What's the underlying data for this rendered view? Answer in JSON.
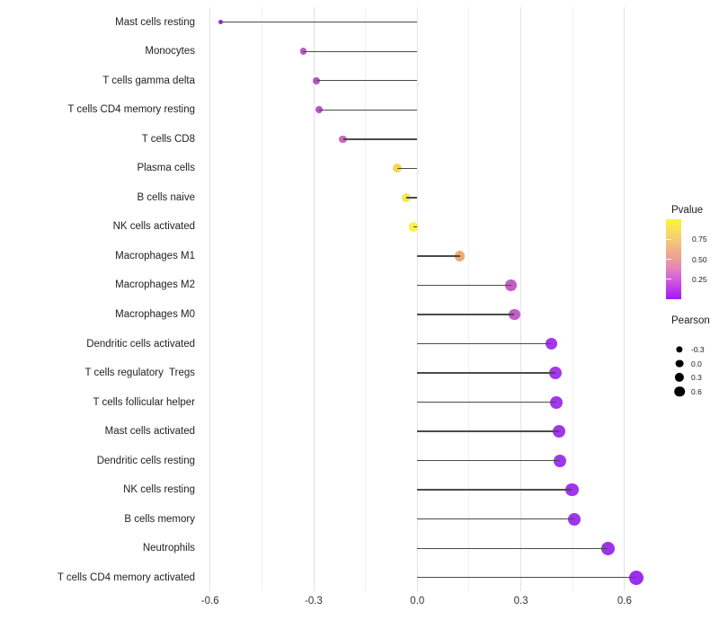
{
  "chart_data": {
    "type": "lollipop",
    "title": "",
    "xlabel": "",
    "ylabel": "",
    "x_tick_labels": [
      "-0.6",
      "-0.3",
      "0.0",
      "0.3",
      "0.6"
    ],
    "x_tick_values": [
      -0.6,
      -0.3,
      0.0,
      0.3,
      0.6
    ],
    "x_minor_values": [
      -0.45,
      -0.15,
      0.15,
      0.45
    ],
    "xlim": [
      -0.62,
      0.68
    ],
    "grid": "vertical major and minor, light gray, no axis lines",
    "stem_color": "#4b4b4b",
    "baseline_x": 0,
    "rows": [
      {
        "label": "Mast cells resting",
        "pearson": -0.57,
        "dot_color": "#9a2be0"
      },
      {
        "label": "Monocytes",
        "pearson": -0.33,
        "dot_color": "#bc56cb"
      },
      {
        "label": "T cells gamma delta",
        "pearson": -0.292,
        "dot_color": "#b951c9"
      },
      {
        "label": "T cells CD4 memory resting",
        "pearson": -0.285,
        "dot_color": "#ba53ca"
      },
      {
        "label": "T cells CD8",
        "pearson": -0.215,
        "dot_color": "#c968c0"
      },
      {
        "label": "Plasma cells",
        "pearson": -0.059,
        "dot_color": "#f3d854"
      },
      {
        "label": "B cells naive",
        "pearson": -0.033,
        "dot_color": "#f7e84c"
      },
      {
        "label": "NK cells activated",
        "pearson": -0.012,
        "dot_color": "#fbf247"
      },
      {
        "label": "Macrophages M1",
        "pearson": 0.123,
        "dot_color": "#ecab72"
      },
      {
        "label": "Macrophages M2",
        "pearson": 0.272,
        "dot_color": "#c25cc6"
      },
      {
        "label": "Macrophages M0",
        "pearson": 0.281,
        "dot_color": "#c15dc8"
      },
      {
        "label": "Dendritic cells activated",
        "pearson": 0.388,
        "dot_color": "#a637e9"
      },
      {
        "label": "T cells regulatory  Tregs",
        "pearson": 0.4,
        "dot_color": "#a537ea"
      },
      {
        "label": "T cells follicular helper",
        "pearson": 0.403,
        "dot_color": "#a436ea"
      },
      {
        "label": "Mast cells activated",
        "pearson": 0.411,
        "dot_color": "#a336eb"
      },
      {
        "label": "Dendritic cells resting",
        "pearson": 0.414,
        "dot_color": "#a335eb"
      },
      {
        "label": "NK cells resting",
        "pearson": 0.448,
        "dot_color": "#a134ec"
      },
      {
        "label": "B cells memory",
        "pearson": 0.455,
        "dot_color": "#a033ec"
      },
      {
        "label": "Neutrophils",
        "pearson": 0.552,
        "dot_color": "#9f31ed"
      },
      {
        "label": "T cells CD4 memory activated",
        "pearson": 0.635,
        "dot_color": "#9c2eee"
      }
    ],
    "legends": {
      "pvalue": {
        "title": "Pvalue",
        "tick_labels": [
          "0.75",
          "0.50",
          "0.25"
        ],
        "tick_fractions_from_top": [
          0.25,
          0.5,
          0.75
        ],
        "gradient_stops": [
          {
            "pos": 0,
            "color": "#fcf23b"
          },
          {
            "pos": 12,
            "color": "#f8e356"
          },
          {
            "pos": 25,
            "color": "#f4cc74"
          },
          {
            "pos": 38,
            "color": "#efb289"
          },
          {
            "pos": 50,
            "color": "#ea9f97"
          },
          {
            "pos": 62,
            "color": "#e282be"
          },
          {
            "pos": 74,
            "color": "#d561d8"
          },
          {
            "pos": 87,
            "color": "#bc3beb"
          },
          {
            "pos": 100,
            "color": "#a219f3"
          }
        ]
      },
      "pearson": {
        "title": "Pearson",
        "items": [
          {
            "label": "-0.3",
            "radius": 3.6
          },
          {
            "label": "0.0",
            "radius": 4.4
          },
          {
            "label": "0.3",
            "radius": 5.1
          },
          {
            "label": "0.6",
            "radius": 5.8
          }
        ]
      }
    }
  }
}
